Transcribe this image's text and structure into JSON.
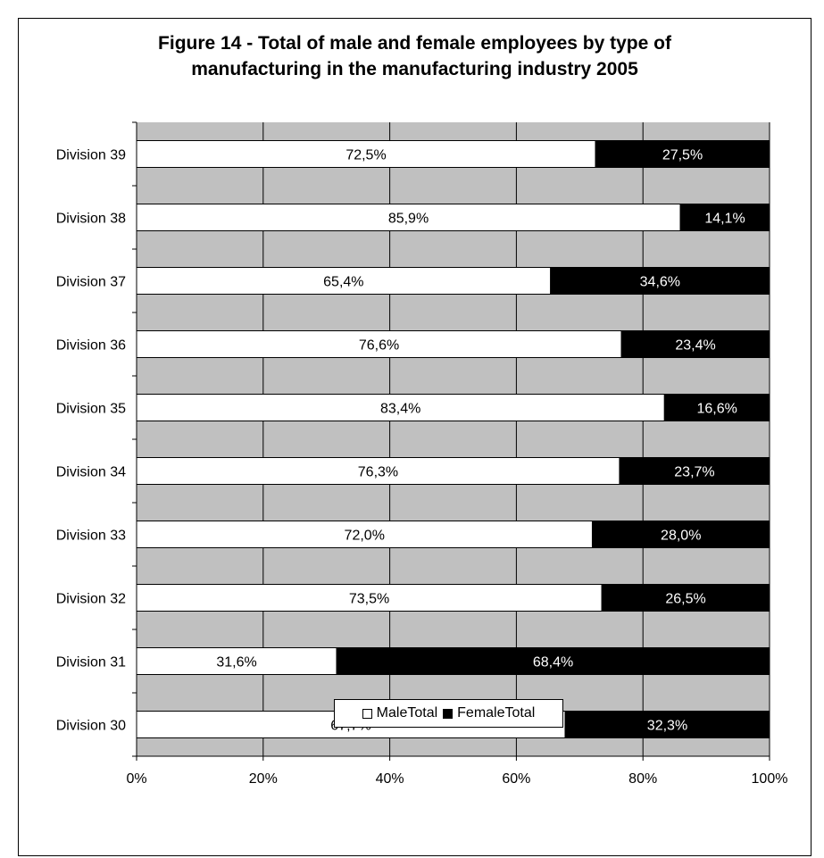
{
  "title": {
    "line1": "Figure 14 - Total of male and female employees by type of",
    "line2": "manufacturing in the manufacturing industry 2005"
  },
  "chart_data": {
    "type": "bar",
    "orientation": "horizontal",
    "stacked": true,
    "title": "Figure 14 - Total of male and female employees by type of manufacturing in the manufacturing industry 2005",
    "categories": [
      "Division 39",
      "Division 38",
      "Division 37",
      "Division 36",
      "Division 35",
      "Division 34",
      "Division 33",
      "Division 32",
      "Division 31",
      "Division 30"
    ],
    "series": [
      {
        "name": "MaleTotal",
        "color": "#ffffff",
        "values": [
          72.5,
          85.9,
          65.4,
          76.6,
          83.4,
          76.3,
          72.0,
          73.5,
          31.6,
          67.7
        ],
        "labels": [
          "72,5%",
          "85,9%",
          "65,4%",
          "76,6%",
          "83,4%",
          "76,3%",
          "72,0%",
          "73,5%",
          "31,6%",
          "67,7%"
        ]
      },
      {
        "name": "FemaleTotal",
        "color": "#000000",
        "values": [
          27.5,
          14.1,
          34.6,
          23.4,
          16.6,
          23.7,
          28.0,
          26.5,
          68.4,
          32.3
        ],
        "labels": [
          "27,5%",
          "14,1%",
          "34,6%",
          "23,4%",
          "16,6%",
          "23,7%",
          "28,0%",
          "26,5%",
          "68,4%",
          "32,3%"
        ]
      }
    ],
    "xaxis": {
      "ticks": [
        0,
        20,
        40,
        60,
        80,
        100
      ],
      "tick_labels": [
        "0%",
        "20%",
        "40%",
        "60%",
        "80%",
        "100%"
      ],
      "range": [
        0,
        100
      ]
    },
    "plot_background": "#c0c0c0",
    "grid": true,
    "legend_position": "bottom"
  },
  "legend": {
    "male_label": "MaleTotal",
    "female_label": "FemaleTotal"
  }
}
